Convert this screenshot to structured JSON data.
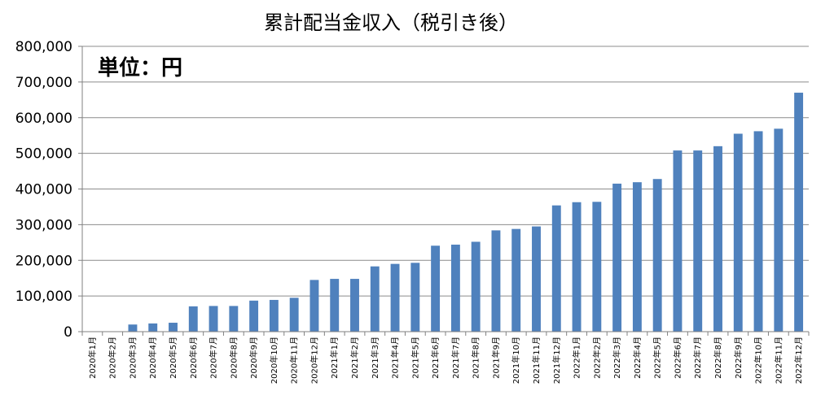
{
  "chart_data": {
    "type": "bar",
    "title": "累計配当金収入（税引き後）",
    "unit_label": "単位：円",
    "ylim": [
      0,
      800000
    ],
    "yticks": [
      0,
      100000,
      200000,
      300000,
      400000,
      500000,
      600000,
      700000,
      800000
    ],
    "ytick_labels": [
      "0",
      "100,000",
      "200,000",
      "300,000",
      "400,000",
      "500,000",
      "600,000",
      "700,000",
      "800,000"
    ],
    "grid": true,
    "categories": [
      "2020年1月",
      "2020年2月",
      "2020年3月",
      "2020年4月",
      "2020年5月",
      "2020年6月",
      "2020年7月",
      "2020年8月",
      "2020年9月",
      "2020年10月",
      "2020年11月",
      "2020年12月",
      "2021年1月",
      "2021年2月",
      "2021年3月",
      "2021年4月",
      "2021年5月",
      "2021年6月",
      "2021年7月",
      "2021年8月",
      "2021年9月",
      "2021年10月",
      "2021年11月",
      "2021年12月",
      "2022年1月",
      "2022年2月",
      "2022年3月",
      "2022年4月",
      "2022年5月",
      "2022年6月",
      "2022年7月",
      "2022年8月",
      "2022年9月",
      "2022年10月",
      "2022年11月",
      "2022年12月"
    ],
    "values": [
      0,
      0,
      20000,
      23000,
      25000,
      71000,
      72000,
      72000,
      87000,
      89000,
      95000,
      145000,
      148000,
      148000,
      183000,
      190000,
      193000,
      241000,
      244000,
      252000,
      284000,
      288000,
      295000,
      354000,
      363000,
      364000,
      415000,
      419000,
      428000,
      508000,
      508000,
      520000,
      555000,
      562000,
      569000,
      670000
    ],
    "bar_color": "#4f81bd"
  }
}
